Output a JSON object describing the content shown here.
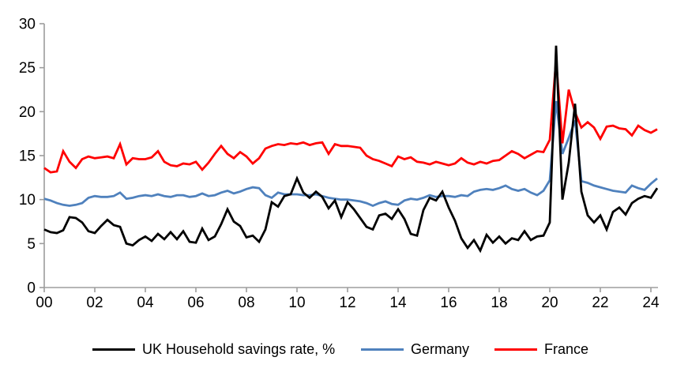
{
  "page": {
    "background": "#ffffff"
  },
  "chart_data": {
    "type": "line",
    "title": "",
    "xlabel": "",
    "ylabel": "",
    "frequency": "quarterly",
    "x_start_year": 2000,
    "x_step_years": 0.25,
    "x_tick_labels": [
      "00",
      "02",
      "04",
      "06",
      "08",
      "10",
      "12",
      "14",
      "16",
      "18",
      "20",
      "22",
      "24"
    ],
    "y_ticks": [
      0,
      5,
      10,
      15,
      20,
      25,
      30
    ],
    "ylim": [
      0,
      30
    ],
    "grid": "off",
    "legend_position": "bottom",
    "axis_color": "#9d9d9d",
    "tick_label_color": "#000000",
    "series": [
      {
        "name": "UK Household savings rate, %",
        "color": "#000000",
        "values": [
          6.6,
          6.3,
          6.2,
          6.5,
          8.0,
          7.9,
          7.4,
          6.4,
          6.2,
          7.0,
          7.7,
          7.1,
          6.9,
          5.0,
          4.8,
          5.4,
          5.8,
          5.3,
          6.1,
          5.5,
          6.3,
          5.5,
          6.4,
          5.2,
          5.1,
          6.7,
          5.4,
          5.8,
          7.2,
          8.9,
          7.5,
          7.0,
          5.7,
          5.9,
          5.2,
          6.6,
          9.7,
          9.2,
          10.4,
          10.6,
          12.4,
          10.8,
          10.2,
          10.9,
          10.3,
          9.0,
          9.9,
          8.0,
          9.7,
          8.9,
          7.9,
          6.9,
          6.6,
          8.2,
          8.4,
          7.8,
          8.9,
          7.8,
          6.1,
          5.9,
          8.8,
          10.2,
          9.9,
          10.9,
          9.1,
          7.6,
          5.6,
          4.5,
          5.4,
          4.2,
          6.0,
          5.1,
          5.8,
          5.0,
          5.6,
          5.4,
          6.4,
          5.4,
          5.8,
          5.9,
          7.4,
          27.5,
          10.0,
          14.2,
          20.9,
          10.9,
          8.2,
          7.4,
          8.2,
          6.6,
          8.6,
          9.1,
          8.3,
          9.6,
          10.1,
          10.4,
          10.2,
          11.3
        ]
      },
      {
        "name": "Germany",
        "color": "#4f81bd",
        "values": [
          10.1,
          9.9,
          9.6,
          9.4,
          9.3,
          9.4,
          9.6,
          10.2,
          10.4,
          10.3,
          10.3,
          10.4,
          10.8,
          10.1,
          10.2,
          10.4,
          10.5,
          10.4,
          10.6,
          10.4,
          10.3,
          10.5,
          10.5,
          10.3,
          10.4,
          10.7,
          10.4,
          10.5,
          10.8,
          11.0,
          10.7,
          10.9,
          11.2,
          11.4,
          11.3,
          10.5,
          10.2,
          10.8,
          10.6,
          10.6,
          10.6,
          10.5,
          10.5,
          10.6,
          10.4,
          10.2,
          10.1,
          10.0,
          10.0,
          9.9,
          9.8,
          9.6,
          9.3,
          9.6,
          9.8,
          9.5,
          9.4,
          9.9,
          10.1,
          10.0,
          10.2,
          10.5,
          10.3,
          10.4,
          10.4,
          10.3,
          10.5,
          10.4,
          10.9,
          11.1,
          11.2,
          11.1,
          11.3,
          11.6,
          11.2,
          11.0,
          11.2,
          10.8,
          10.5,
          11.0,
          12.2,
          21.2,
          15.2,
          17.0,
          19.0,
          12.1,
          11.9,
          11.6,
          11.4,
          11.2,
          11.0,
          10.9,
          10.8,
          11.6,
          11.3,
          11.1,
          11.8,
          12.4
        ]
      },
      {
        "name": "France",
        "color": "#ff0000",
        "values": [
          13.6,
          13.1,
          13.2,
          15.5,
          14.3,
          13.6,
          14.6,
          14.9,
          14.7,
          14.8,
          14.9,
          14.7,
          16.3,
          14.0,
          14.7,
          14.6,
          14.6,
          14.8,
          15.5,
          14.3,
          13.9,
          13.8,
          14.1,
          14.0,
          14.3,
          13.4,
          14.2,
          15.2,
          16.1,
          15.2,
          14.7,
          15.4,
          14.9,
          14.1,
          14.7,
          15.8,
          16.1,
          16.3,
          16.2,
          16.4,
          16.3,
          16.5,
          16.2,
          16.4,
          16.5,
          15.2,
          16.3,
          16.1,
          16.1,
          16.0,
          15.9,
          15.0,
          14.6,
          14.4,
          14.1,
          13.8,
          14.9,
          14.6,
          14.8,
          14.3,
          14.2,
          14.0,
          14.3,
          14.1,
          13.9,
          14.1,
          14.7,
          14.2,
          14.0,
          14.3,
          14.1,
          14.4,
          14.5,
          15.0,
          15.5,
          15.2,
          14.7,
          15.1,
          15.5,
          15.4,
          16.8,
          25.9,
          16.4,
          22.5,
          19.9,
          18.2,
          18.8,
          18.2,
          16.9,
          18.3,
          18.4,
          18.1,
          18.0,
          17.3,
          18.4,
          17.9,
          17.6,
          18.0
        ]
      }
    ]
  }
}
